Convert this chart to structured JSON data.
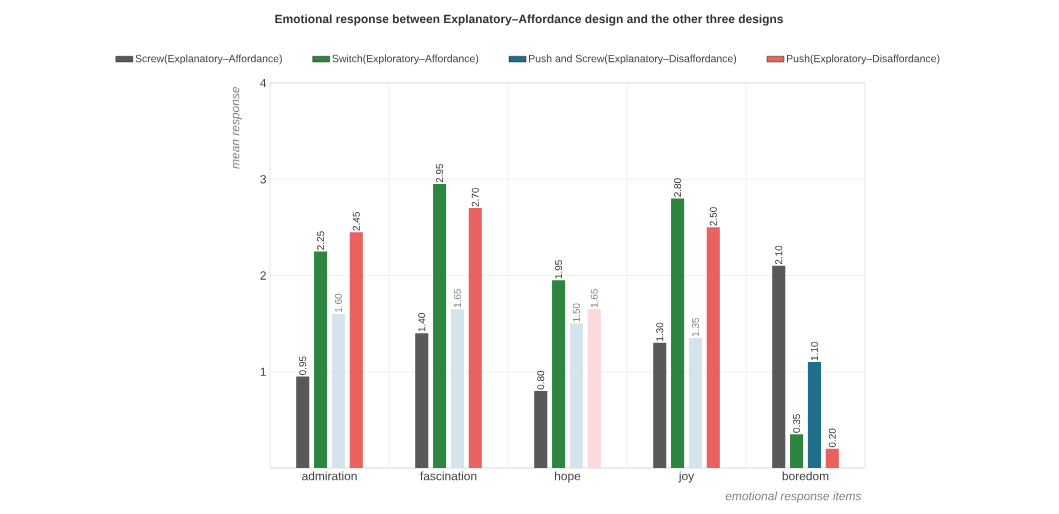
{
  "chart_data": {
    "type": "bar",
    "title": "Emotional response between Explanatory–Affordance design and the other three designs",
    "categories": [
      "admiration",
      "fascination",
      "hope",
      "joy",
      "boredom"
    ],
    "xlabel": "emotional response items",
    "ylabel": "mean response",
    "ylim": [
      0,
      4
    ],
    "yticks": [
      {
        "value": 0,
        "label": null
      },
      1,
      2,
      3,
      4
    ],
    "grid": true,
    "legend": "top",
    "series": [
      {
        "name": "Screw(Explanatory–Affordance)",
        "color": "#595959",
        "values": [
          0.95,
          1.4,
          0.8,
          1.3,
          2.1
        ],
        "value_labels": [
          "0.95",
          "1.40",
          "0.80",
          "1.30",
          "2.10"
        ]
      },
      {
        "name": "Switch(Exploratory–Affordance)",
        "color": "#2e8540",
        "values": [
          2.25,
          2.95,
          1.95,
          2.8,
          0.35
        ],
        "value_labels": [
          "2.25",
          "2.95",
          "1.95",
          "2.80",
          "0.35"
        ]
      },
      {
        "name": "Push and Screw(Explanatory–Disaffordance)",
        "color": "#1f6e8c",
        "colors": [
          "#d5e4ea",
          "#d5e4ea",
          "#d5e4ea",
          "#d5e4ea",
          "#1f6e8c"
        ],
        "values": [
          1.6,
          1.65,
          1.5,
          1.35,
          1.1
        ],
        "value_labels": [
          "1.60",
          "1.65",
          "1.50",
          "1.35",
          "1.10"
        ]
      },
      {
        "name": "Push(Exploratory–Disaffordance)",
        "color": "#e8625f",
        "colors": [
          "#e8625f",
          "#e8625f",
          "#fadadb",
          "#e8625f",
          "#e8625f"
        ],
        "values": [
          2.45,
          2.7,
          1.65,
          2.5,
          0.2
        ],
        "value_labels": [
          "2.45",
          "2.70",
          "1.65",
          "2.50",
          "0.20"
        ]
      }
    ]
  }
}
